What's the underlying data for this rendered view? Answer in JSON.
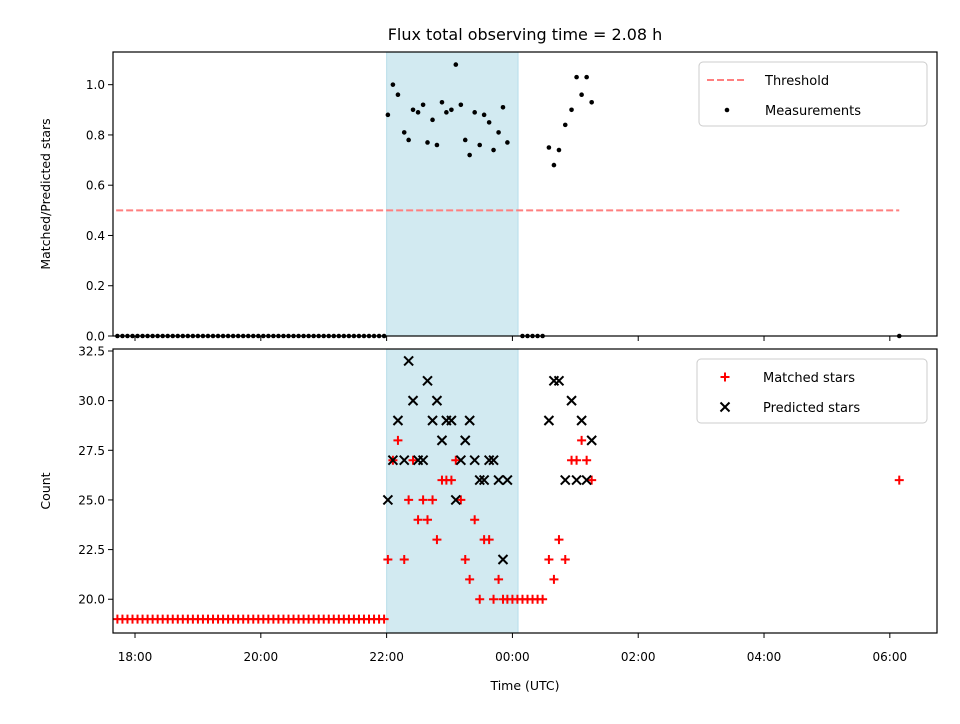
{
  "chart_data": {
    "title": "Flux total observing time = 2.08 h",
    "xlabel": "Time (UTC)",
    "x_unit": "hours since midnight UTC (negative = previous day)",
    "xlim": [
      -6.35,
      6.75
    ],
    "xticks": [
      {
        "value": -6,
        "label": "18:00"
      },
      {
        "value": -4,
        "label": "20:00"
      },
      {
        "value": -2,
        "label": "22:00"
      },
      {
        "value": 0,
        "label": "00:00"
      },
      {
        "value": 2,
        "label": "02:00"
      },
      {
        "value": 4,
        "label": "04:00"
      },
      {
        "value": 6,
        "label": "06:00"
      }
    ],
    "shaded_interval": {
      "x0": -2.0,
      "x1": 0.09,
      "color": "#add8e6"
    },
    "colors": {
      "threshold": "#ff7f7f",
      "measurements": "#000000",
      "matched": "#ff0000",
      "predicted": "#000000"
    },
    "panels": [
      {
        "type": "scatter",
        "ylabel": "Matched/Predicted stars",
        "ylim": [
          0,
          1.13
        ],
        "yticks": [
          "0.0",
          "0.2",
          "0.4",
          "0.6",
          "0.8",
          "1.0"
        ],
        "legend": {
          "position": "upper right",
          "entries": [
            "Threshold",
            "Measurements"
          ]
        },
        "threshold": {
          "name": "Threshold",
          "y": 0.5,
          "x_range": [
            -6.3,
            6.15
          ]
        },
        "series": [
          {
            "name": "Measurements",
            "marker": "dot",
            "points": [
              [
                -6.28,
                0
              ],
              [
                -6.2,
                0
              ],
              [
                -6.12,
                0
              ],
              [
                -6.04,
                0
              ],
              [
                -5.96,
                0
              ],
              [
                -5.88,
                0
              ],
              [
                -5.8,
                0
              ],
              [
                -5.72,
                0
              ],
              [
                -5.64,
                0
              ],
              [
                -5.56,
                0
              ],
              [
                -5.48,
                0
              ],
              [
                -5.4,
                0
              ],
              [
                -5.32,
                0
              ],
              [
                -5.24,
                0
              ],
              [
                -5.16,
                0
              ],
              [
                -5.08,
                0
              ],
              [
                -5.0,
                0
              ],
              [
                -4.92,
                0
              ],
              [
                -4.84,
                0
              ],
              [
                -4.76,
                0
              ],
              [
                -4.68,
                0
              ],
              [
                -4.6,
                0
              ],
              [
                -4.52,
                0
              ],
              [
                -4.44,
                0
              ],
              [
                -4.36,
                0
              ],
              [
                -4.28,
                0
              ],
              [
                -4.2,
                0
              ],
              [
                -4.12,
                0
              ],
              [
                -4.04,
                0
              ],
              [
                -3.96,
                0
              ],
              [
                -3.88,
                0
              ],
              [
                -3.8,
                0
              ],
              [
                -3.72,
                0
              ],
              [
                -3.64,
                0
              ],
              [
                -3.56,
                0
              ],
              [
                -3.48,
                0
              ],
              [
                -3.4,
                0
              ],
              [
                -3.32,
                0
              ],
              [
                -3.24,
                0
              ],
              [
                -3.16,
                0
              ],
              [
                -3.08,
                0
              ],
              [
                -3.0,
                0
              ],
              [
                -2.92,
                0
              ],
              [
                -2.84,
                0
              ],
              [
                -2.76,
                0
              ],
              [
                -2.68,
                0
              ],
              [
                -2.6,
                0
              ],
              [
                -2.52,
                0
              ],
              [
                -2.44,
                0
              ],
              [
                -2.36,
                0
              ],
              [
                -2.28,
                0
              ],
              [
                -2.2,
                0
              ],
              [
                -2.12,
                0
              ],
              [
                -2.04,
                0
              ],
              [
                -1.98,
                0.88
              ],
              [
                -1.9,
                1.0
              ],
              [
                -1.82,
                0.96
              ],
              [
                -1.72,
                0.81
              ],
              [
                -1.65,
                0.78
              ],
              [
                -1.58,
                0.9
              ],
              [
                -1.5,
                0.89
              ],
              [
                -1.42,
                0.92
              ],
              [
                -1.35,
                0.77
              ],
              [
                -1.27,
                0.86
              ],
              [
                -1.2,
                0.76
              ],
              [
                -1.12,
                0.93
              ],
              [
                -1.05,
                0.89
              ],
              [
                -0.97,
                0.9
              ],
              [
                -0.9,
                1.08
              ],
              [
                -0.82,
                0.92
              ],
              [
                -0.75,
                0.78
              ],
              [
                -0.68,
                0.72
              ],
              [
                -0.6,
                0.89
              ],
              [
                -0.52,
                0.76
              ],
              [
                -0.45,
                0.88
              ],
              [
                -0.37,
                0.85
              ],
              [
                -0.3,
                0.74
              ],
              [
                -0.22,
                0.81
              ],
              [
                -0.15,
                0.91
              ],
              [
                -0.08,
                0.77
              ],
              [
                0.16,
                0
              ],
              [
                0.24,
                0
              ],
              [
                0.32,
                0
              ],
              [
                0.4,
                0
              ],
              [
                0.48,
                0
              ],
              [
                0.58,
                0.75
              ],
              [
                0.66,
                0.68
              ],
              [
                0.74,
                0.74
              ],
              [
                0.84,
                0.84
              ],
              [
                0.94,
                0.9
              ],
              [
                1.02,
                1.03
              ],
              [
                1.1,
                0.96
              ],
              [
                1.18,
                1.03
              ],
              [
                1.26,
                0.93
              ],
              [
                6.15,
                0
              ]
            ]
          }
        ]
      },
      {
        "type": "scatter",
        "ylabel": "Count",
        "ylim": [
          18.3,
          32.6
        ],
        "yticks": [
          "20.0",
          "22.5",
          "25.0",
          "27.5",
          "30.0",
          "32.5"
        ],
        "legend": {
          "position": "upper right",
          "entries": [
            "Matched stars",
            "Predicted stars"
          ]
        },
        "series": [
          {
            "name": "Matched stars",
            "marker": "plus",
            "points": [
              [
                -6.28,
                19
              ],
              [
                -6.2,
                19
              ],
              [
                -6.12,
                19
              ],
              [
                -6.04,
                19
              ],
              [
                -5.96,
                19
              ],
              [
                -5.88,
                19
              ],
              [
                -5.8,
                19
              ],
              [
                -5.72,
                19
              ],
              [
                -5.64,
                19
              ],
              [
                -5.56,
                19
              ],
              [
                -5.48,
                19
              ],
              [
                -5.4,
                19
              ],
              [
                -5.32,
                19
              ],
              [
                -5.24,
                19
              ],
              [
                -5.16,
                19
              ],
              [
                -5.08,
                19
              ],
              [
                -5.0,
                19
              ],
              [
                -4.92,
                19
              ],
              [
                -4.84,
                19
              ],
              [
                -4.76,
                19
              ],
              [
                -4.68,
                19
              ],
              [
                -4.6,
                19
              ],
              [
                -4.52,
                19
              ],
              [
                -4.44,
                19
              ],
              [
                -4.36,
                19
              ],
              [
                -4.28,
                19
              ],
              [
                -4.2,
                19
              ],
              [
                -4.12,
                19
              ],
              [
                -4.04,
                19
              ],
              [
                -3.96,
                19
              ],
              [
                -3.88,
                19
              ],
              [
                -3.8,
                19
              ],
              [
                -3.72,
                19
              ],
              [
                -3.64,
                19
              ],
              [
                -3.56,
                19
              ],
              [
                -3.48,
                19
              ],
              [
                -3.4,
                19
              ],
              [
                -3.32,
                19
              ],
              [
                -3.24,
                19
              ],
              [
                -3.16,
                19
              ],
              [
                -3.08,
                19
              ],
              [
                -3.0,
                19
              ],
              [
                -2.92,
                19
              ],
              [
                -2.84,
                19
              ],
              [
                -2.76,
                19
              ],
              [
                -2.68,
                19
              ],
              [
                -2.6,
                19
              ],
              [
                -2.52,
                19
              ],
              [
                -2.44,
                19
              ],
              [
                -2.36,
                19
              ],
              [
                -2.28,
                19
              ],
              [
                -2.2,
                19
              ],
              [
                -2.12,
                19
              ],
              [
                -2.04,
                19
              ],
              [
                -1.98,
                22
              ],
              [
                -1.9,
                27
              ],
              [
                -1.82,
                28
              ],
              [
                -1.72,
                22
              ],
              [
                -1.65,
                25
              ],
              [
                -1.58,
                27
              ],
              [
                -1.5,
                24
              ],
              [
                -1.42,
                25
              ],
              [
                -1.35,
                24
              ],
              [
                -1.27,
                25
              ],
              [
                -1.2,
                23
              ],
              [
                -1.12,
                26
              ],
              [
                -1.05,
                26
              ],
              [
                -0.97,
                26
              ],
              [
                -0.9,
                27
              ],
              [
                -0.82,
                25
              ],
              [
                -0.75,
                22
              ],
              [
                -0.68,
                21
              ],
              [
                -0.6,
                24
              ],
              [
                -0.52,
                20
              ],
              [
                -0.45,
                23
              ],
              [
                -0.37,
                23
              ],
              [
                -0.3,
                20
              ],
              [
                -0.22,
                21
              ],
              [
                -0.15,
                20
              ],
              [
                -0.08,
                20
              ],
              [
                0.0,
                20
              ],
              [
                0.08,
                20
              ],
              [
                0.16,
                20
              ],
              [
                0.24,
                20
              ],
              [
                0.32,
                20
              ],
              [
                0.4,
                20
              ],
              [
                0.48,
                20
              ],
              [
                0.58,
                22
              ],
              [
                0.66,
                21
              ],
              [
                0.74,
                23
              ],
              [
                0.84,
                22
              ],
              [
                0.94,
                27
              ],
              [
                1.02,
                27
              ],
              [
                1.1,
                28
              ],
              [
                1.18,
                27
              ],
              [
                1.26,
                26
              ],
              [
                6.15,
                26
              ]
            ]
          },
          {
            "name": "Predicted stars",
            "marker": "x",
            "points": [
              [
                -1.98,
                25
              ],
              [
                -1.9,
                27
              ],
              [
                -1.82,
                29
              ],
              [
                -1.72,
                27
              ],
              [
                -1.65,
                32
              ],
              [
                -1.58,
                30
              ],
              [
                -1.5,
                27
              ],
              [
                -1.42,
                27
              ],
              [
                -1.35,
                31
              ],
              [
                -1.27,
                29
              ],
              [
                -1.2,
                30
              ],
              [
                -1.12,
                28
              ],
              [
                -1.05,
                29
              ],
              [
                -0.97,
                29
              ],
              [
                -0.9,
                25
              ],
              [
                -0.82,
                27
              ],
              [
                -0.75,
                28
              ],
              [
                -0.68,
                29
              ],
              [
                -0.6,
                27
              ],
              [
                -0.52,
                26
              ],
              [
                -0.45,
                26
              ],
              [
                -0.37,
                27
              ],
              [
                -0.3,
                27
              ],
              [
                -0.22,
                26
              ],
              [
                -0.15,
                22
              ],
              [
                -0.08,
                26
              ],
              [
                0.58,
                29
              ],
              [
                0.66,
                31
              ],
              [
                0.74,
                31
              ],
              [
                0.84,
                26
              ],
              [
                0.94,
                30
              ],
              [
                1.02,
                26
              ],
              [
                1.1,
                29
              ],
              [
                1.18,
                26
              ],
              [
                1.26,
                28
              ]
            ]
          }
        ]
      }
    ]
  }
}
